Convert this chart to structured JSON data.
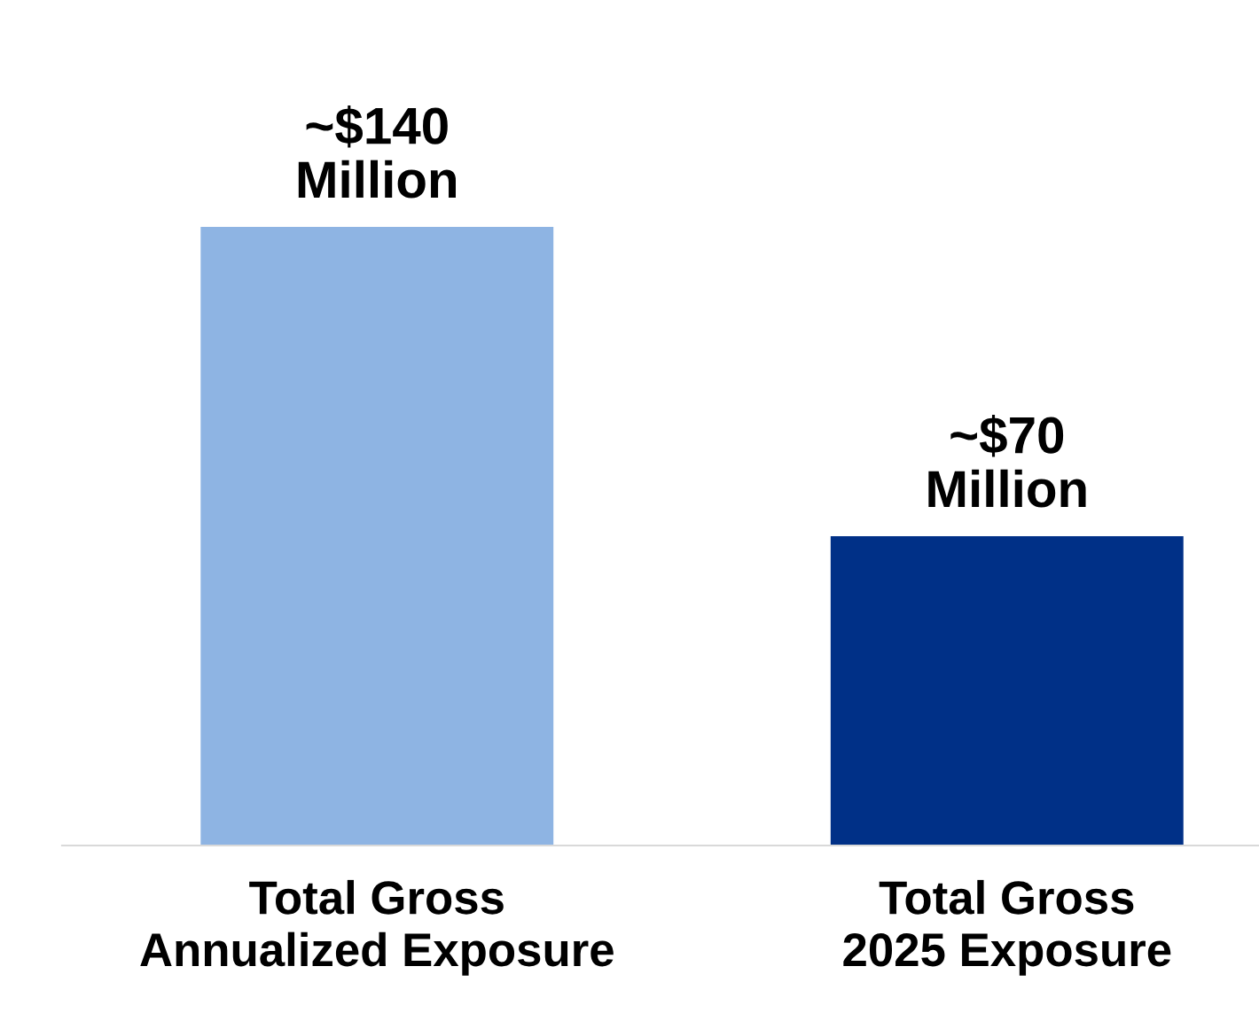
{
  "chart_data": {
    "type": "bar",
    "categories": [
      "Total Gross\nAnnualized Exposure",
      "Total Gross\n2025 Exposure"
    ],
    "values": [
      140,
      70
    ],
    "colors": [
      "#8eb4e3",
      "#003087"
    ],
    "value_labels": [
      "~$140\nMillion",
      "~$70\nMillion"
    ],
    "tick_labels": "x",
    "grid": false
  }
}
